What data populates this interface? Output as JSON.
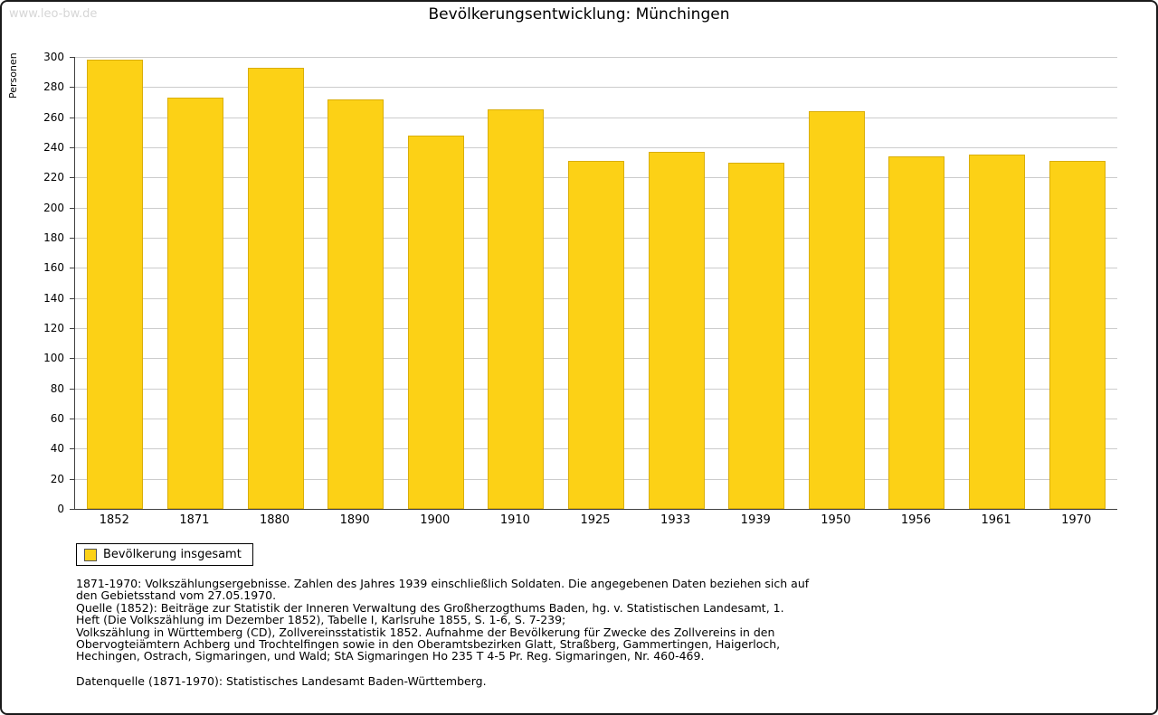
{
  "watermark": "www.leo-bw.de",
  "title": "Bevölkerungsentwicklung: Münchingen",
  "ylabel": "Personen",
  "legend": {
    "label": "Bevölkerung insgesamt"
  },
  "colors": {
    "bar": "#FCD116",
    "bar_border": "#D9AE0A",
    "grid": "#cccccc",
    "axis": "#404040",
    "watermark": "#d6d6d6"
  },
  "chart_data": {
    "type": "bar",
    "title": "Bevölkerungsentwicklung: Münchingen",
    "xlabel": "",
    "ylabel": "Personen",
    "categories": [
      "1852",
      "1871",
      "1880",
      "1890",
      "1900",
      "1910",
      "1925",
      "1933",
      "1939",
      "1950",
      "1956",
      "1961",
      "1970"
    ],
    "series": [
      {
        "name": "Bevölkerung insgesamt",
        "values": [
          298,
          273,
          293,
          272,
          248,
          265,
          231,
          237,
          230,
          264,
          234,
          235,
          231
        ]
      }
    ],
    "ylim": [
      0,
      300
    ],
    "ytick_step": 20,
    "grid": true,
    "legend_position": "bottom-left"
  },
  "footnotes": [
    "1871-1970: Volkszählungsergebnisse. Zahlen des Jahres 1939 einschließlich Soldaten. Die angegebenen Daten beziehen sich auf den Gebietsstand vom 27.05.1970.",
    "Quelle (1852): Beiträge zur Statistik der Inneren Verwaltung des Großherzogthums Baden, hg. v. Statistischen Landesamt, 1. Heft (Die Volkszählung im Dezember 1852), Tabelle I, Karlsruhe 1855, S. 1-6, S. 7-239;",
    "Volkszählung in Württemberg (CD), Zollvereinsstatistik 1852. Aufnahme der Bevölkerung für Zwecke des Zollvereins in den Obervogteiämtern Achberg und Trochtelfingen sowie in den Oberamtsbezirken Glatt, Straßberg, Gammertingen, Haigerloch, Hechingen, Ostrach, Sigmaringen, und Wald; StA Sigmaringen Ho 235 T 4-5 Pr. Reg. Sigmaringen, Nr. 460-469.",
    "Datenquelle (1871-1970): Statistisches Landesamt Baden-Württemberg."
  ]
}
